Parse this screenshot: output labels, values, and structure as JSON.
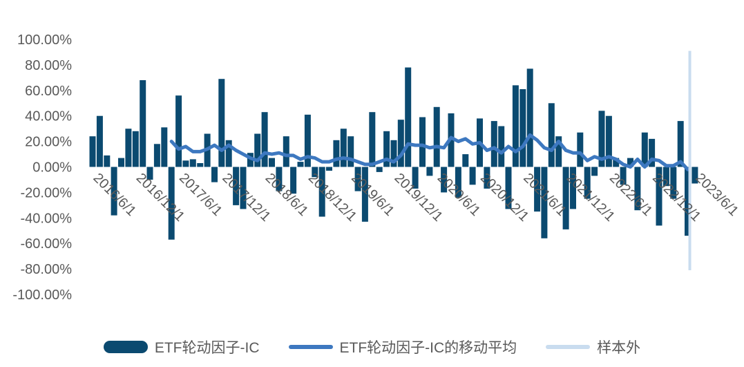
{
  "chart_data": {
    "type": "bar",
    "y_ticks": [
      "100.00%",
      "80.00%",
      "60.00%",
      "40.00%",
      "20.00%",
      "0.00%",
      "-20.00%",
      "-40.00%",
      "-60.00%",
      "-80.00%",
      "-100.00%"
    ],
    "ylim": [
      -100,
      100
    ],
    "x_tick_labels": [
      "2016/6/1",
      "2016/12/1",
      "2017/6/1",
      "2017/12/1",
      "2018/6/1",
      "2018/12/1",
      "2019/6/1",
      "2019/12/1",
      "2020/6/1",
      "2020/12/1",
      "2021/6/1",
      "2021/12/1",
      "2022/6/1",
      "2022/12/1",
      "2023/6/1"
    ],
    "x_start": "2016/6",
    "x_end": "2023/6",
    "series": [
      {
        "name": "ETF轮动因子-IC",
        "kind": "bar",
        "color": "#0b4a70",
        "values": [
          24,
          40,
          9,
          -38,
          7,
          30,
          28,
          68,
          -10,
          18,
          31,
          -57,
          56,
          5,
          6,
          3,
          26,
          -12,
          69,
          21,
          -30,
          -33,
          11,
          26,
          43,
          7,
          -19,
          24,
          -21,
          4,
          41,
          -8,
          -39,
          -3,
          21,
          30,
          24,
          -19,
          -43,
          43,
          -4,
          28,
          21,
          37,
          78,
          -17,
          39,
          -7,
          47,
          -20,
          42,
          -24,
          10,
          -14,
          38,
          -17,
          36,
          32,
          -33,
          64,
          61,
          77,
          -35,
          -56,
          50,
          24,
          -49,
          -33,
          27,
          -25,
          -7,
          44,
          40,
          7,
          -14,
          7,
          -34,
          27,
          22,
          -46,
          -15,
          -25,
          36,
          -54,
          -13
        ],
        "note": "85 monthly values from 2016/6 to 2023/6"
      },
      {
        "name": "ETF轮动因子-IC的移动平均",
        "kind": "line",
        "color": "#3d78c0",
        "values": [
          20,
          14,
          16,
          12,
          12,
          14,
          17,
          13,
          17,
          13,
          10,
          7,
          5,
          11,
          10,
          11,
          9,
          9,
          6,
          8,
          7,
          4,
          4,
          6,
          7,
          6,
          4,
          2,
          2,
          4,
          6,
          4,
          9,
          18,
          17,
          17,
          15,
          16,
          15,
          23,
          20,
          22,
          18,
          19,
          13,
          15,
          11,
          16,
          12,
          16,
          25,
          21,
          15,
          13,
          20,
          13,
          11,
          11,
          5,
          8,
          6,
          8,
          6,
          2,
          0,
          6,
          0,
          6,
          5,
          1,
          1,
          4,
          -2
        ],
        "note": "line starts 2017/5 (index 11) and ends 2023/5"
      },
      {
        "name": "样本外",
        "kind": "vertical-marker",
        "color": "#c9dcef",
        "at": "2023/5",
        "yrange": [
          -81,
          91
        ]
      }
    ],
    "legend": [
      "ETF轮动因子-IC",
      "ETF轮动因子-IC的移动平均",
      "样本外"
    ],
    "legend_position": "bottom"
  }
}
